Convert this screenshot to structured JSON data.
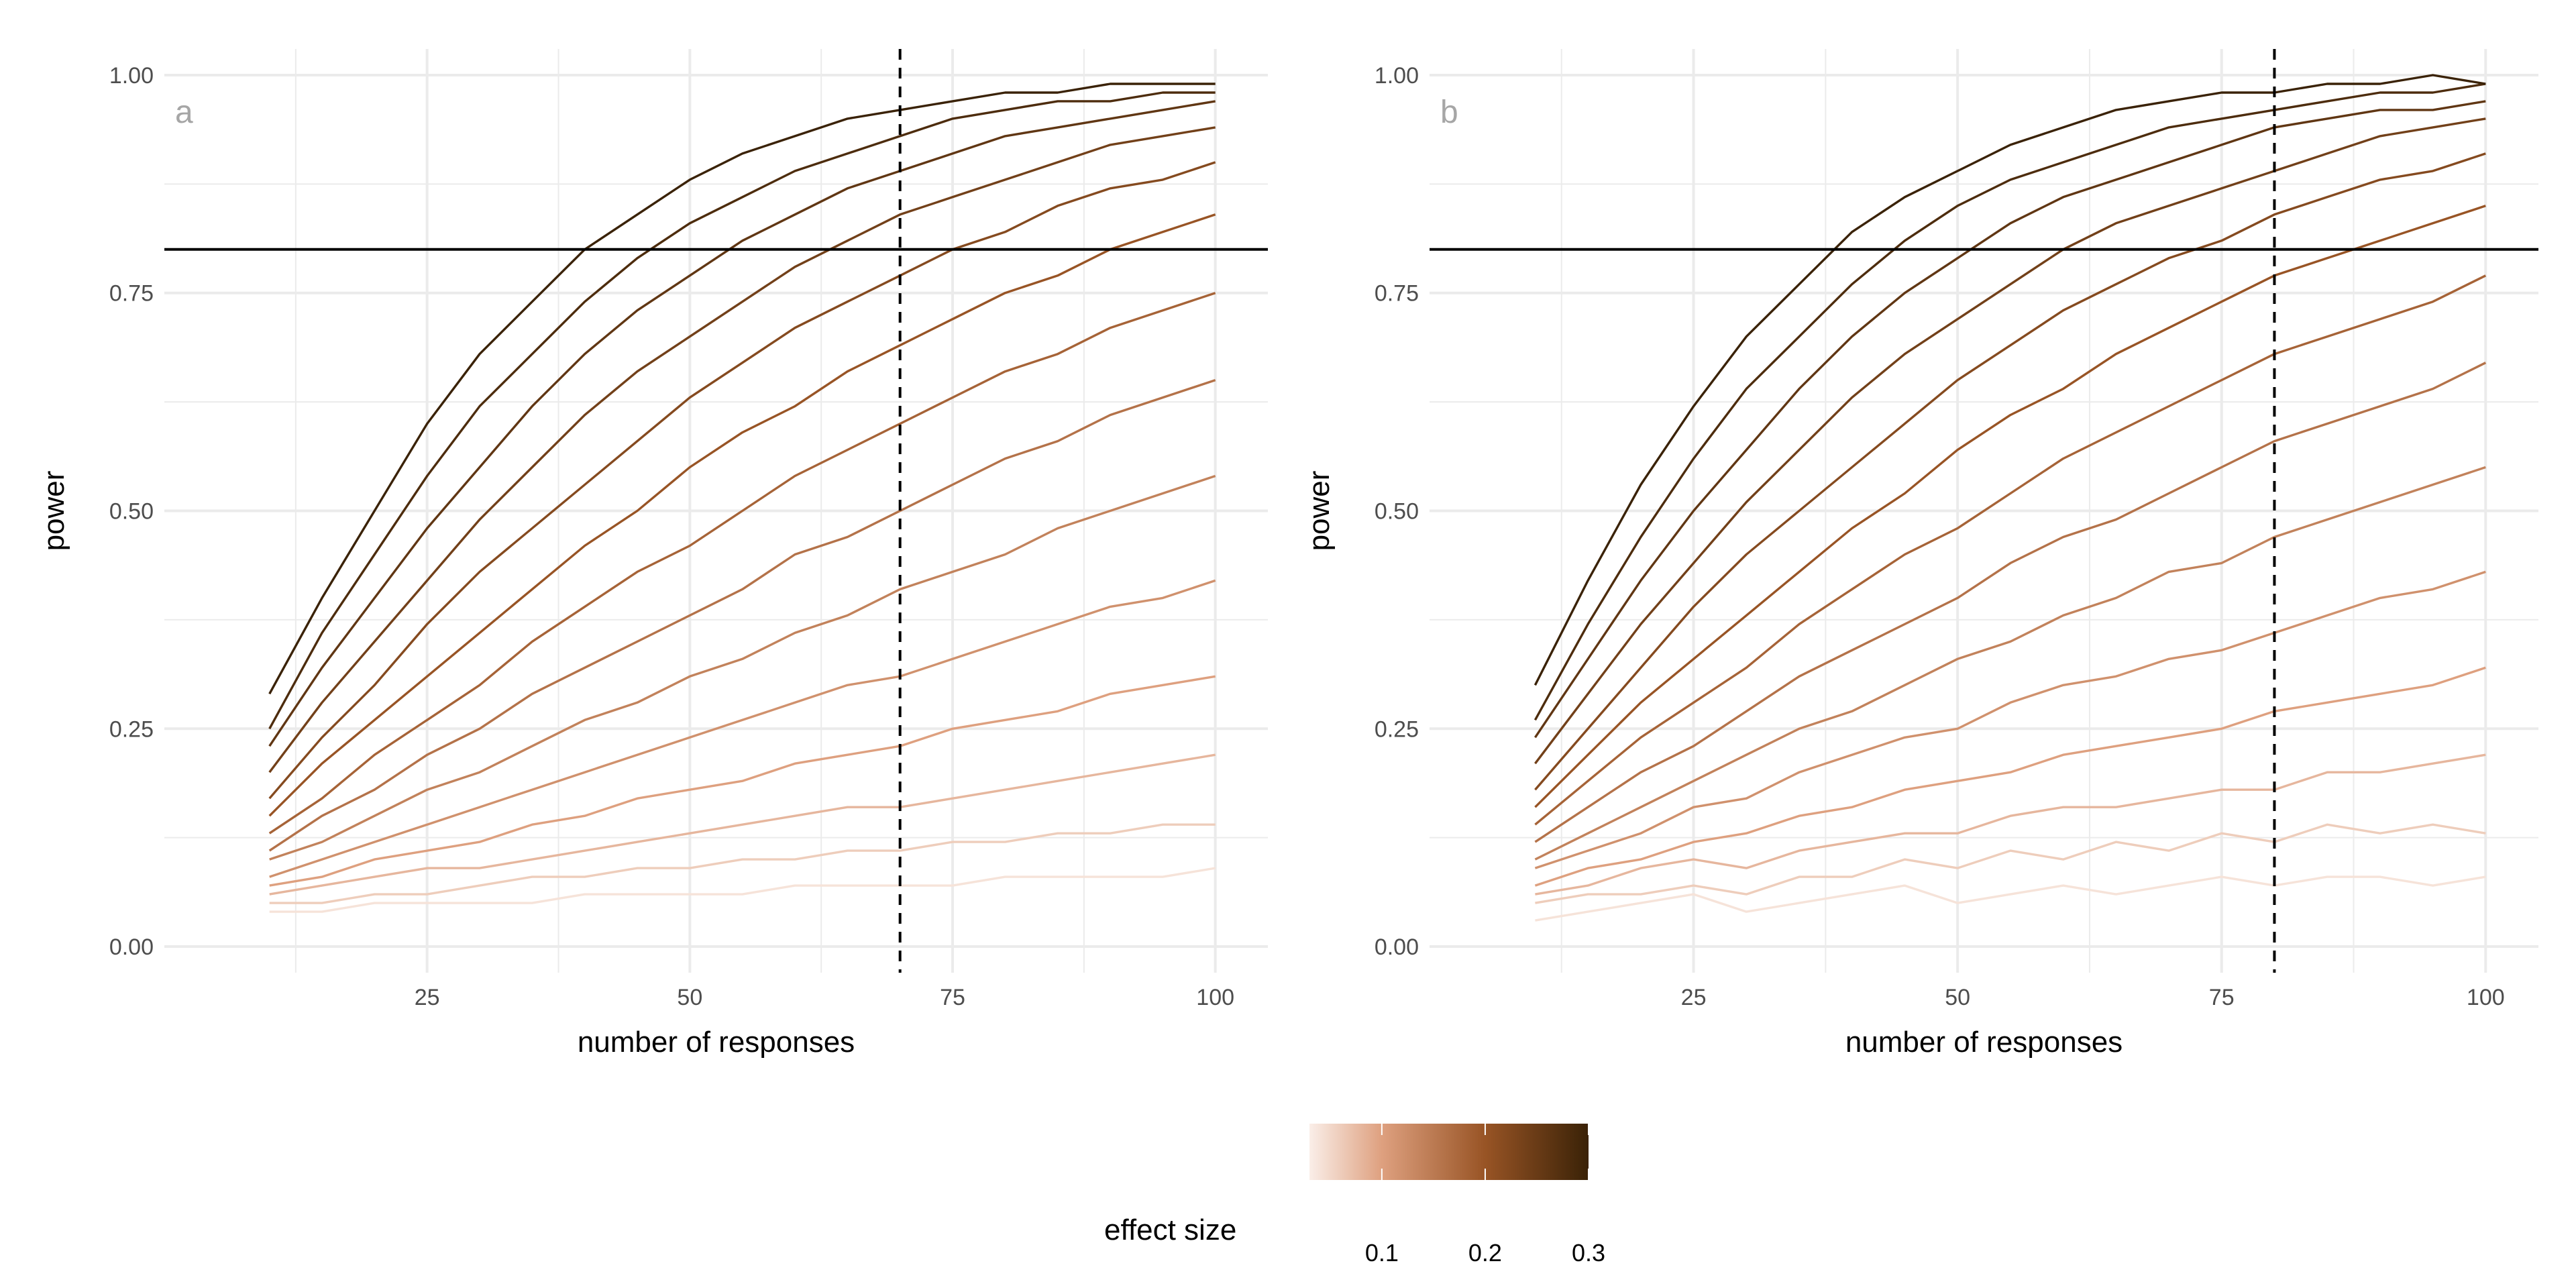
{
  "x_values": [
    10,
    15,
    20,
    25,
    30,
    35,
    40,
    45,
    50,
    55,
    60,
    65,
    70,
    75,
    80,
    85,
    90,
    95,
    100
  ],
  "chart_data": [
    {
      "type": "line",
      "panel_tag": "a",
      "xlabel": "number of responses",
      "ylabel": "power",
      "xlim": [
        0,
        105
      ],
      "ylim": [
        -0.03,
        1.03
      ],
      "x_ticks": [
        "25",
        "50",
        "75",
        "100"
      ],
      "y_ticks": [
        "0.00",
        "0.25",
        "0.50",
        "0.75",
        "1.00"
      ],
      "grid": true,
      "hline": 0.8,
      "vline_dashed": 70,
      "series": [
        {
          "effect_size": 0.04,
          "values": [
            0.04,
            0.04,
            0.05,
            0.05,
            0.05,
            0.05,
            0.06,
            0.06,
            0.06,
            0.06,
            0.07,
            0.07,
            0.07,
            0.07,
            0.08,
            0.08,
            0.08,
            0.08,
            0.09
          ]
        },
        {
          "effect_size": 0.06,
          "values": [
            0.05,
            0.05,
            0.06,
            0.06,
            0.07,
            0.08,
            0.08,
            0.09,
            0.09,
            0.1,
            0.1,
            0.11,
            0.11,
            0.12,
            0.12,
            0.13,
            0.13,
            0.14,
            0.14
          ]
        },
        {
          "effect_size": 0.08,
          "values": [
            0.06,
            0.07,
            0.08,
            0.09,
            0.09,
            0.1,
            0.11,
            0.12,
            0.13,
            0.14,
            0.15,
            0.16,
            0.16,
            0.17,
            0.18,
            0.19,
            0.2,
            0.21,
            0.22
          ]
        },
        {
          "effect_size": 0.1,
          "values": [
            0.07,
            0.08,
            0.1,
            0.11,
            0.12,
            0.14,
            0.15,
            0.17,
            0.18,
            0.19,
            0.21,
            0.22,
            0.23,
            0.25,
            0.26,
            0.27,
            0.29,
            0.3,
            0.31
          ]
        },
        {
          "effect_size": 0.12,
          "values": [
            0.08,
            0.1,
            0.12,
            0.14,
            0.16,
            0.18,
            0.2,
            0.22,
            0.24,
            0.26,
            0.28,
            0.3,
            0.31,
            0.33,
            0.35,
            0.37,
            0.39,
            0.4,
            0.42
          ]
        },
        {
          "effect_size": 0.14,
          "values": [
            0.1,
            0.12,
            0.15,
            0.18,
            0.2,
            0.23,
            0.26,
            0.28,
            0.31,
            0.33,
            0.36,
            0.38,
            0.41,
            0.43,
            0.45,
            0.48,
            0.5,
            0.52,
            0.54
          ]
        },
        {
          "effect_size": 0.16,
          "values": [
            0.11,
            0.15,
            0.18,
            0.22,
            0.25,
            0.29,
            0.32,
            0.35,
            0.38,
            0.41,
            0.45,
            0.47,
            0.5,
            0.53,
            0.56,
            0.58,
            0.61,
            0.63,
            0.65
          ]
        },
        {
          "effect_size": 0.18,
          "values": [
            0.13,
            0.17,
            0.22,
            0.26,
            0.3,
            0.35,
            0.39,
            0.43,
            0.46,
            0.5,
            0.54,
            0.57,
            0.6,
            0.63,
            0.66,
            0.68,
            0.71,
            0.73,
            0.75
          ]
        },
        {
          "effect_size": 0.2,
          "values": [
            0.15,
            0.21,
            0.26,
            0.31,
            0.36,
            0.41,
            0.46,
            0.5,
            0.55,
            0.59,
            0.62,
            0.66,
            0.69,
            0.72,
            0.75,
            0.77,
            0.8,
            0.82,
            0.84
          ]
        },
        {
          "effect_size": 0.22,
          "values": [
            0.17,
            0.24,
            0.3,
            0.37,
            0.43,
            0.48,
            0.53,
            0.58,
            0.63,
            0.67,
            0.71,
            0.74,
            0.77,
            0.8,
            0.82,
            0.85,
            0.87,
            0.88,
            0.9
          ]
        },
        {
          "effect_size": 0.24,
          "values": [
            0.2,
            0.28,
            0.35,
            0.42,
            0.49,
            0.55,
            0.61,
            0.66,
            0.7,
            0.74,
            0.78,
            0.81,
            0.84,
            0.86,
            0.88,
            0.9,
            0.92,
            0.93,
            0.94
          ]
        },
        {
          "effect_size": 0.26,
          "values": [
            0.23,
            0.32,
            0.4,
            0.48,
            0.55,
            0.62,
            0.68,
            0.73,
            0.77,
            0.81,
            0.84,
            0.87,
            0.89,
            0.91,
            0.93,
            0.94,
            0.95,
            0.96,
            0.97
          ]
        },
        {
          "effect_size": 0.28,
          "values": [
            0.25,
            0.36,
            0.45,
            0.54,
            0.62,
            0.68,
            0.74,
            0.79,
            0.83,
            0.86,
            0.89,
            0.91,
            0.93,
            0.95,
            0.96,
            0.97,
            0.97,
            0.98,
            0.98
          ]
        },
        {
          "effect_size": 0.3,
          "values": [
            0.29,
            0.4,
            0.5,
            0.6,
            0.68,
            0.74,
            0.8,
            0.84,
            0.88,
            0.91,
            0.93,
            0.95,
            0.96,
            0.97,
            0.98,
            0.98,
            0.99,
            0.99,
            0.99
          ]
        }
      ]
    },
    {
      "type": "line",
      "panel_tag": "b",
      "xlabel": "number of responses",
      "ylabel": "power",
      "xlim": [
        0,
        105
      ],
      "ylim": [
        -0.03,
        1.03
      ],
      "x_ticks": [
        "25",
        "50",
        "75",
        "100"
      ],
      "y_ticks": [
        "0.00",
        "0.25",
        "0.50",
        "0.75",
        "1.00"
      ],
      "grid": true,
      "hline": 0.8,
      "vline_dashed": 80,
      "series": [
        {
          "effect_size": 0.04,
          "values": [
            0.03,
            0.04,
            0.05,
            0.06,
            0.04,
            0.05,
            0.06,
            0.07,
            0.05,
            0.06,
            0.07,
            0.06,
            0.07,
            0.08,
            0.07,
            0.08,
            0.08,
            0.07,
            0.08
          ]
        },
        {
          "effect_size": 0.06,
          "values": [
            0.05,
            0.06,
            0.06,
            0.07,
            0.06,
            0.08,
            0.08,
            0.1,
            0.09,
            0.11,
            0.1,
            0.12,
            0.11,
            0.13,
            0.12,
            0.14,
            0.13,
            0.14,
            0.13
          ]
        },
        {
          "effect_size": 0.08,
          "values": [
            0.06,
            0.07,
            0.09,
            0.1,
            0.09,
            0.11,
            0.12,
            0.13,
            0.13,
            0.15,
            0.16,
            0.16,
            0.17,
            0.18,
            0.18,
            0.2,
            0.2,
            0.21,
            0.22
          ]
        },
        {
          "effect_size": 0.1,
          "values": [
            0.07,
            0.09,
            0.1,
            0.12,
            0.13,
            0.15,
            0.16,
            0.18,
            0.19,
            0.2,
            0.22,
            0.23,
            0.24,
            0.25,
            0.27,
            0.28,
            0.29,
            0.3,
            0.32
          ]
        },
        {
          "effect_size": 0.12,
          "values": [
            0.09,
            0.11,
            0.13,
            0.16,
            0.17,
            0.2,
            0.22,
            0.24,
            0.25,
            0.28,
            0.3,
            0.31,
            0.33,
            0.34,
            0.36,
            0.38,
            0.4,
            0.41,
            0.43
          ]
        },
        {
          "effect_size": 0.14,
          "values": [
            0.1,
            0.13,
            0.16,
            0.19,
            0.22,
            0.25,
            0.27,
            0.3,
            0.33,
            0.35,
            0.38,
            0.4,
            0.43,
            0.44,
            0.47,
            0.49,
            0.51,
            0.53,
            0.55
          ]
        },
        {
          "effect_size": 0.16,
          "values": [
            0.12,
            0.16,
            0.2,
            0.23,
            0.27,
            0.31,
            0.34,
            0.37,
            0.4,
            0.44,
            0.47,
            0.49,
            0.52,
            0.55,
            0.58,
            0.6,
            0.62,
            0.64,
            0.67
          ]
        },
        {
          "effect_size": 0.18,
          "values": [
            0.14,
            0.19,
            0.24,
            0.28,
            0.32,
            0.37,
            0.41,
            0.45,
            0.48,
            0.52,
            0.56,
            0.59,
            0.62,
            0.65,
            0.68,
            0.7,
            0.72,
            0.74,
            0.77
          ]
        },
        {
          "effect_size": 0.2,
          "values": [
            0.16,
            0.22,
            0.28,
            0.33,
            0.38,
            0.43,
            0.48,
            0.52,
            0.57,
            0.61,
            0.64,
            0.68,
            0.71,
            0.74,
            0.77,
            0.79,
            0.81,
            0.83,
            0.85
          ]
        },
        {
          "effect_size": 0.22,
          "values": [
            0.18,
            0.25,
            0.32,
            0.39,
            0.45,
            0.5,
            0.55,
            0.6,
            0.65,
            0.69,
            0.73,
            0.76,
            0.79,
            0.81,
            0.84,
            0.86,
            0.88,
            0.89,
            0.91
          ]
        },
        {
          "effect_size": 0.24,
          "values": [
            0.21,
            0.29,
            0.37,
            0.44,
            0.51,
            0.57,
            0.63,
            0.68,
            0.72,
            0.76,
            0.8,
            0.83,
            0.85,
            0.87,
            0.89,
            0.91,
            0.93,
            0.94,
            0.95
          ]
        },
        {
          "effect_size": 0.26,
          "values": [
            0.24,
            0.33,
            0.42,
            0.5,
            0.57,
            0.64,
            0.7,
            0.75,
            0.79,
            0.83,
            0.86,
            0.88,
            0.9,
            0.92,
            0.94,
            0.95,
            0.96,
            0.96,
            0.97
          ]
        },
        {
          "effect_size": 0.28,
          "values": [
            0.26,
            0.37,
            0.47,
            0.56,
            0.64,
            0.7,
            0.76,
            0.81,
            0.85,
            0.88,
            0.9,
            0.92,
            0.94,
            0.95,
            0.96,
            0.97,
            0.98,
            0.98,
            0.99
          ]
        },
        {
          "effect_size": 0.3,
          "values": [
            0.3,
            0.42,
            0.53,
            0.62,
            0.7,
            0.76,
            0.82,
            0.86,
            0.89,
            0.92,
            0.94,
            0.96,
            0.97,
            0.98,
            0.98,
            0.99,
            0.99,
            1.0,
            0.99
          ]
        }
      ]
    }
  ],
  "legend": {
    "title": "effect size",
    "range": [
      0.03,
      0.3
    ],
    "ticks": [
      "0.1",
      "0.2",
      "0.3"
    ],
    "tick_values": [
      0.1,
      0.2,
      0.3
    ],
    "colors": [
      "#faeee8",
      "#dea07f",
      "#985425",
      "#3a2207"
    ],
    "color_stops": [
      0.03,
      0.1,
      0.2,
      0.3
    ]
  },
  "colors": {
    "hline": "#000000",
    "vline": "#000000",
    "grid": "#ebebeb"
  }
}
